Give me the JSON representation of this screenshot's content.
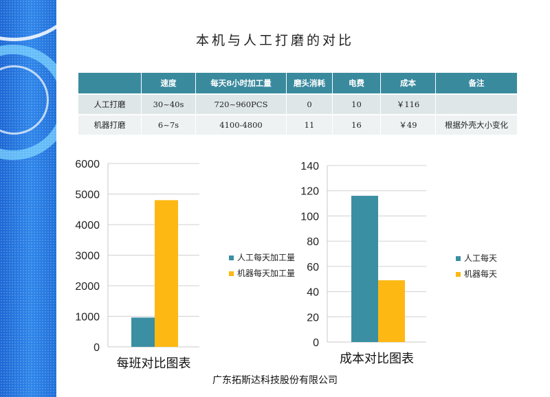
{
  "title": "本机与人工打磨的对比",
  "table": {
    "headers": [
      "",
      "速度",
      "每天8小时加工量",
      "磨头消耗",
      "电费",
      "成本",
      "备注"
    ],
    "rows": [
      [
        "人工打磨",
        "30~40s",
        "720~960PCS",
        "0",
        "10",
        "￥116",
        ""
      ],
      [
        "机器打磨",
        "6~7s",
        "4100-4800",
        "11",
        "16",
        "￥49",
        "根据外壳大小变化"
      ]
    ]
  },
  "chart_data": [
    {
      "type": "bar",
      "title": "每班对比图表",
      "categories": [
        ""
      ],
      "series": [
        {
          "name": "人工每天加工量",
          "values": [
            960
          ],
          "color": "#3b8fa3"
        },
        {
          "name": "机器每天加工量",
          "values": [
            4800
          ],
          "color": "#fdb813"
        }
      ],
      "ylim": [
        0,
        6000
      ],
      "yticks": [
        0,
        1000,
        2000,
        3000,
        4000,
        5000,
        6000
      ],
      "grid": true,
      "legend": "right"
    },
    {
      "type": "bar",
      "title": "成本对比图表",
      "categories": [
        ""
      ],
      "series": [
        {
          "name": "人工每天",
          "values": [
            116
          ],
          "color": "#3b8fa3"
        },
        {
          "name": "机器每天",
          "values": [
            49
          ],
          "color": "#fdb813"
        }
      ],
      "ylim": [
        0,
        140
      ],
      "yticks": [
        0,
        20,
        40,
        60,
        80,
        100,
        120,
        140
      ],
      "grid": true,
      "legend": "right"
    }
  ],
  "footer": "广东拓斯达科技股份有限公司"
}
